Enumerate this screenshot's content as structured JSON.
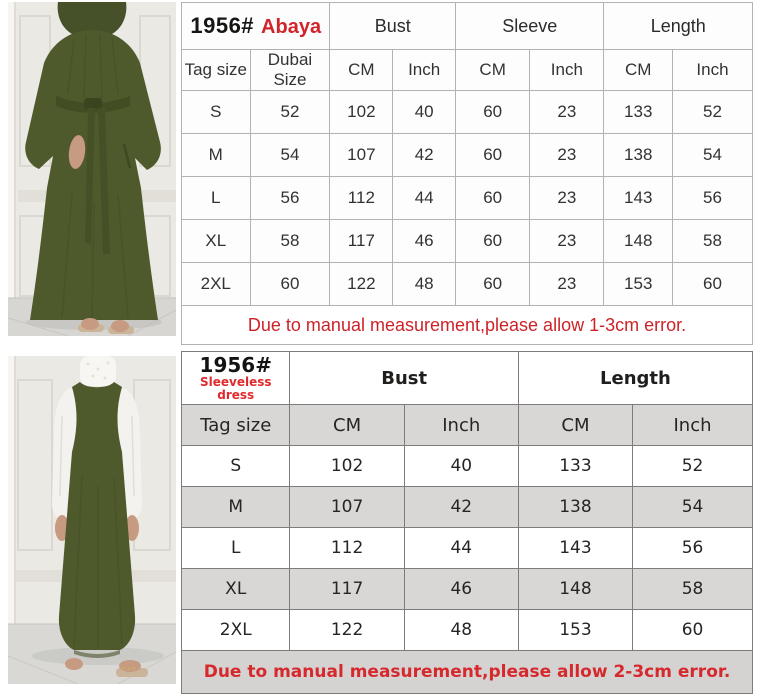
{
  "colors": {
    "accent_red": "#d2252b",
    "row_gray": "#d8d7d5",
    "table_border_light": "#b3b2b0",
    "table_border_dark": "#7d7c7a",
    "dress_olive": "#4f5a2c",
    "wall_cream": "#ebe9e4",
    "floor_gray": "#d7d6d2",
    "skin": "#c79a82",
    "undershirt_white": "#f3f2ee"
  },
  "photos": [
    {
      "description": "Model wearing olive green belted abaya with hijab, standing against white paneled wall"
    },
    {
      "description": "Olive green sleeveless maxi dress worn over white long-sleeve top"
    }
  ],
  "tables": [
    {
      "code": "1956#",
      "variant": "Abaya",
      "col_groups": [
        {
          "label": "Bust"
        },
        {
          "label": "Sleeve"
        },
        {
          "label": "Length"
        }
      ],
      "sub_headers": [
        "Tag size",
        "Dubai Size",
        "CM",
        "Inch",
        "CM",
        "Inch",
        "CM",
        "Inch"
      ],
      "rows": [
        [
          "S",
          "52",
          "102",
          "40",
          "60",
          "23",
          "133",
          "52"
        ],
        [
          "M",
          "54",
          "107",
          "42",
          "60",
          "23",
          "138",
          "54"
        ],
        [
          "L",
          "56",
          "112",
          "44",
          "60",
          "23",
          "143",
          "56"
        ],
        [
          "XL",
          "58",
          "117",
          "46",
          "60",
          "23",
          "148",
          "58"
        ],
        [
          "2XL",
          "60",
          "122",
          "48",
          "60",
          "23",
          "153",
          "60"
        ]
      ],
      "note": "Due to manual measurement,please allow 1-3cm error."
    },
    {
      "code": "1956#",
      "variant": "Sleeveless dress",
      "col_groups": [
        {
          "label": "Bust"
        },
        {
          "label": "Length"
        }
      ],
      "sub_headers": [
        "Tag size",
        "CM",
        "Inch",
        "CM",
        "Inch"
      ],
      "rows": [
        [
          "S",
          "102",
          "40",
          "133",
          "52"
        ],
        [
          "M",
          "107",
          "42",
          "138",
          "54"
        ],
        [
          "L",
          "112",
          "44",
          "143",
          "56"
        ],
        [
          "XL",
          "117",
          "46",
          "148",
          "58"
        ],
        [
          "2XL",
          "122",
          "48",
          "153",
          "60"
        ]
      ],
      "note": "Due to manual measurement,please allow 2-3cm error."
    }
  ]
}
